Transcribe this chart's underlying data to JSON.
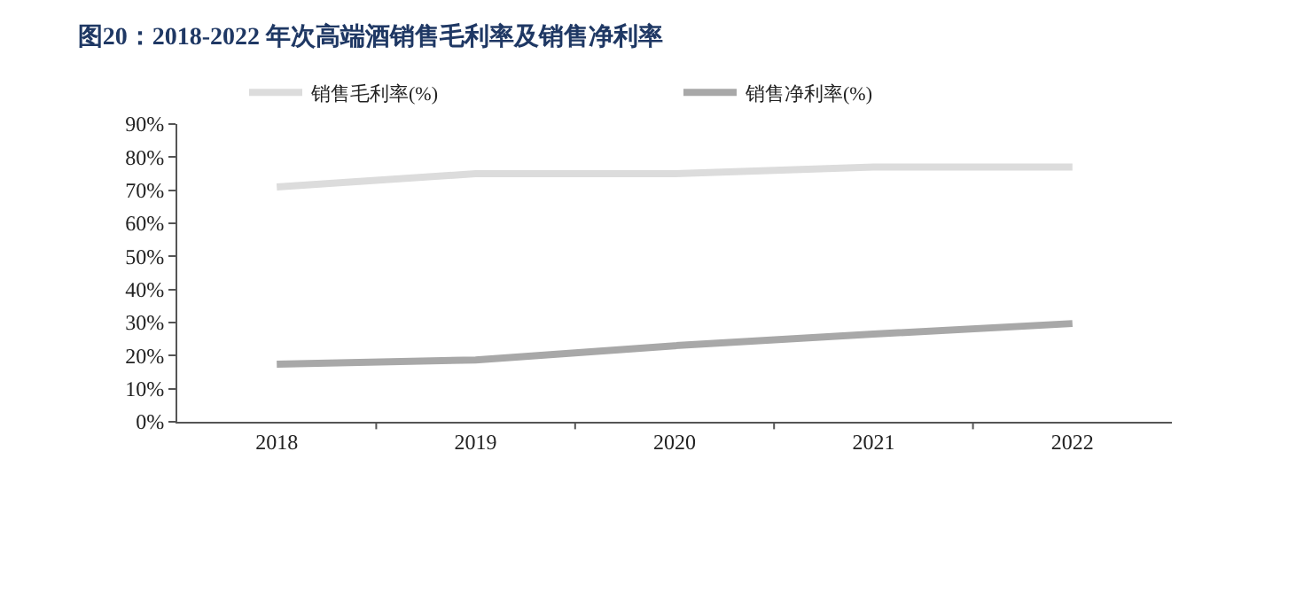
{
  "chart_data": {
    "type": "line",
    "title": "图20：2018-2022 年次高端酒销售毛利率及销售净利率",
    "categories": [
      "2018",
      "2019",
      "2020",
      "2021",
      "2022"
    ],
    "series": [
      {
        "name": "销售毛利率(%)",
        "color": "#dcdcdc",
        "values": [
          71,
          75,
          75,
          77,
          77
        ]
      },
      {
        "name": "销售净利率(%)",
        "color": "#a8a8a8",
        "values": [
          17.4,
          18.7,
          23,
          26.5,
          29.7
        ]
      }
    ],
    "ylim": [
      0,
      90
    ],
    "yticks": [
      {
        "value": 0,
        "label": "0%"
      },
      {
        "value": 10,
        "label": "10%"
      },
      {
        "value": 20,
        "label": "20%"
      },
      {
        "value": 30,
        "label": "30%"
      },
      {
        "value": 40,
        "label": "40%"
      },
      {
        "value": 50,
        "label": "50%"
      },
      {
        "value": 60,
        "label": "60%"
      },
      {
        "value": 70,
        "label": "70%"
      },
      {
        "value": 80,
        "label": "80%"
      },
      {
        "value": 90,
        "label": "90%"
      }
    ],
    "grid": false,
    "legend": "top",
    "marker": "none",
    "line_style": "solid"
  }
}
